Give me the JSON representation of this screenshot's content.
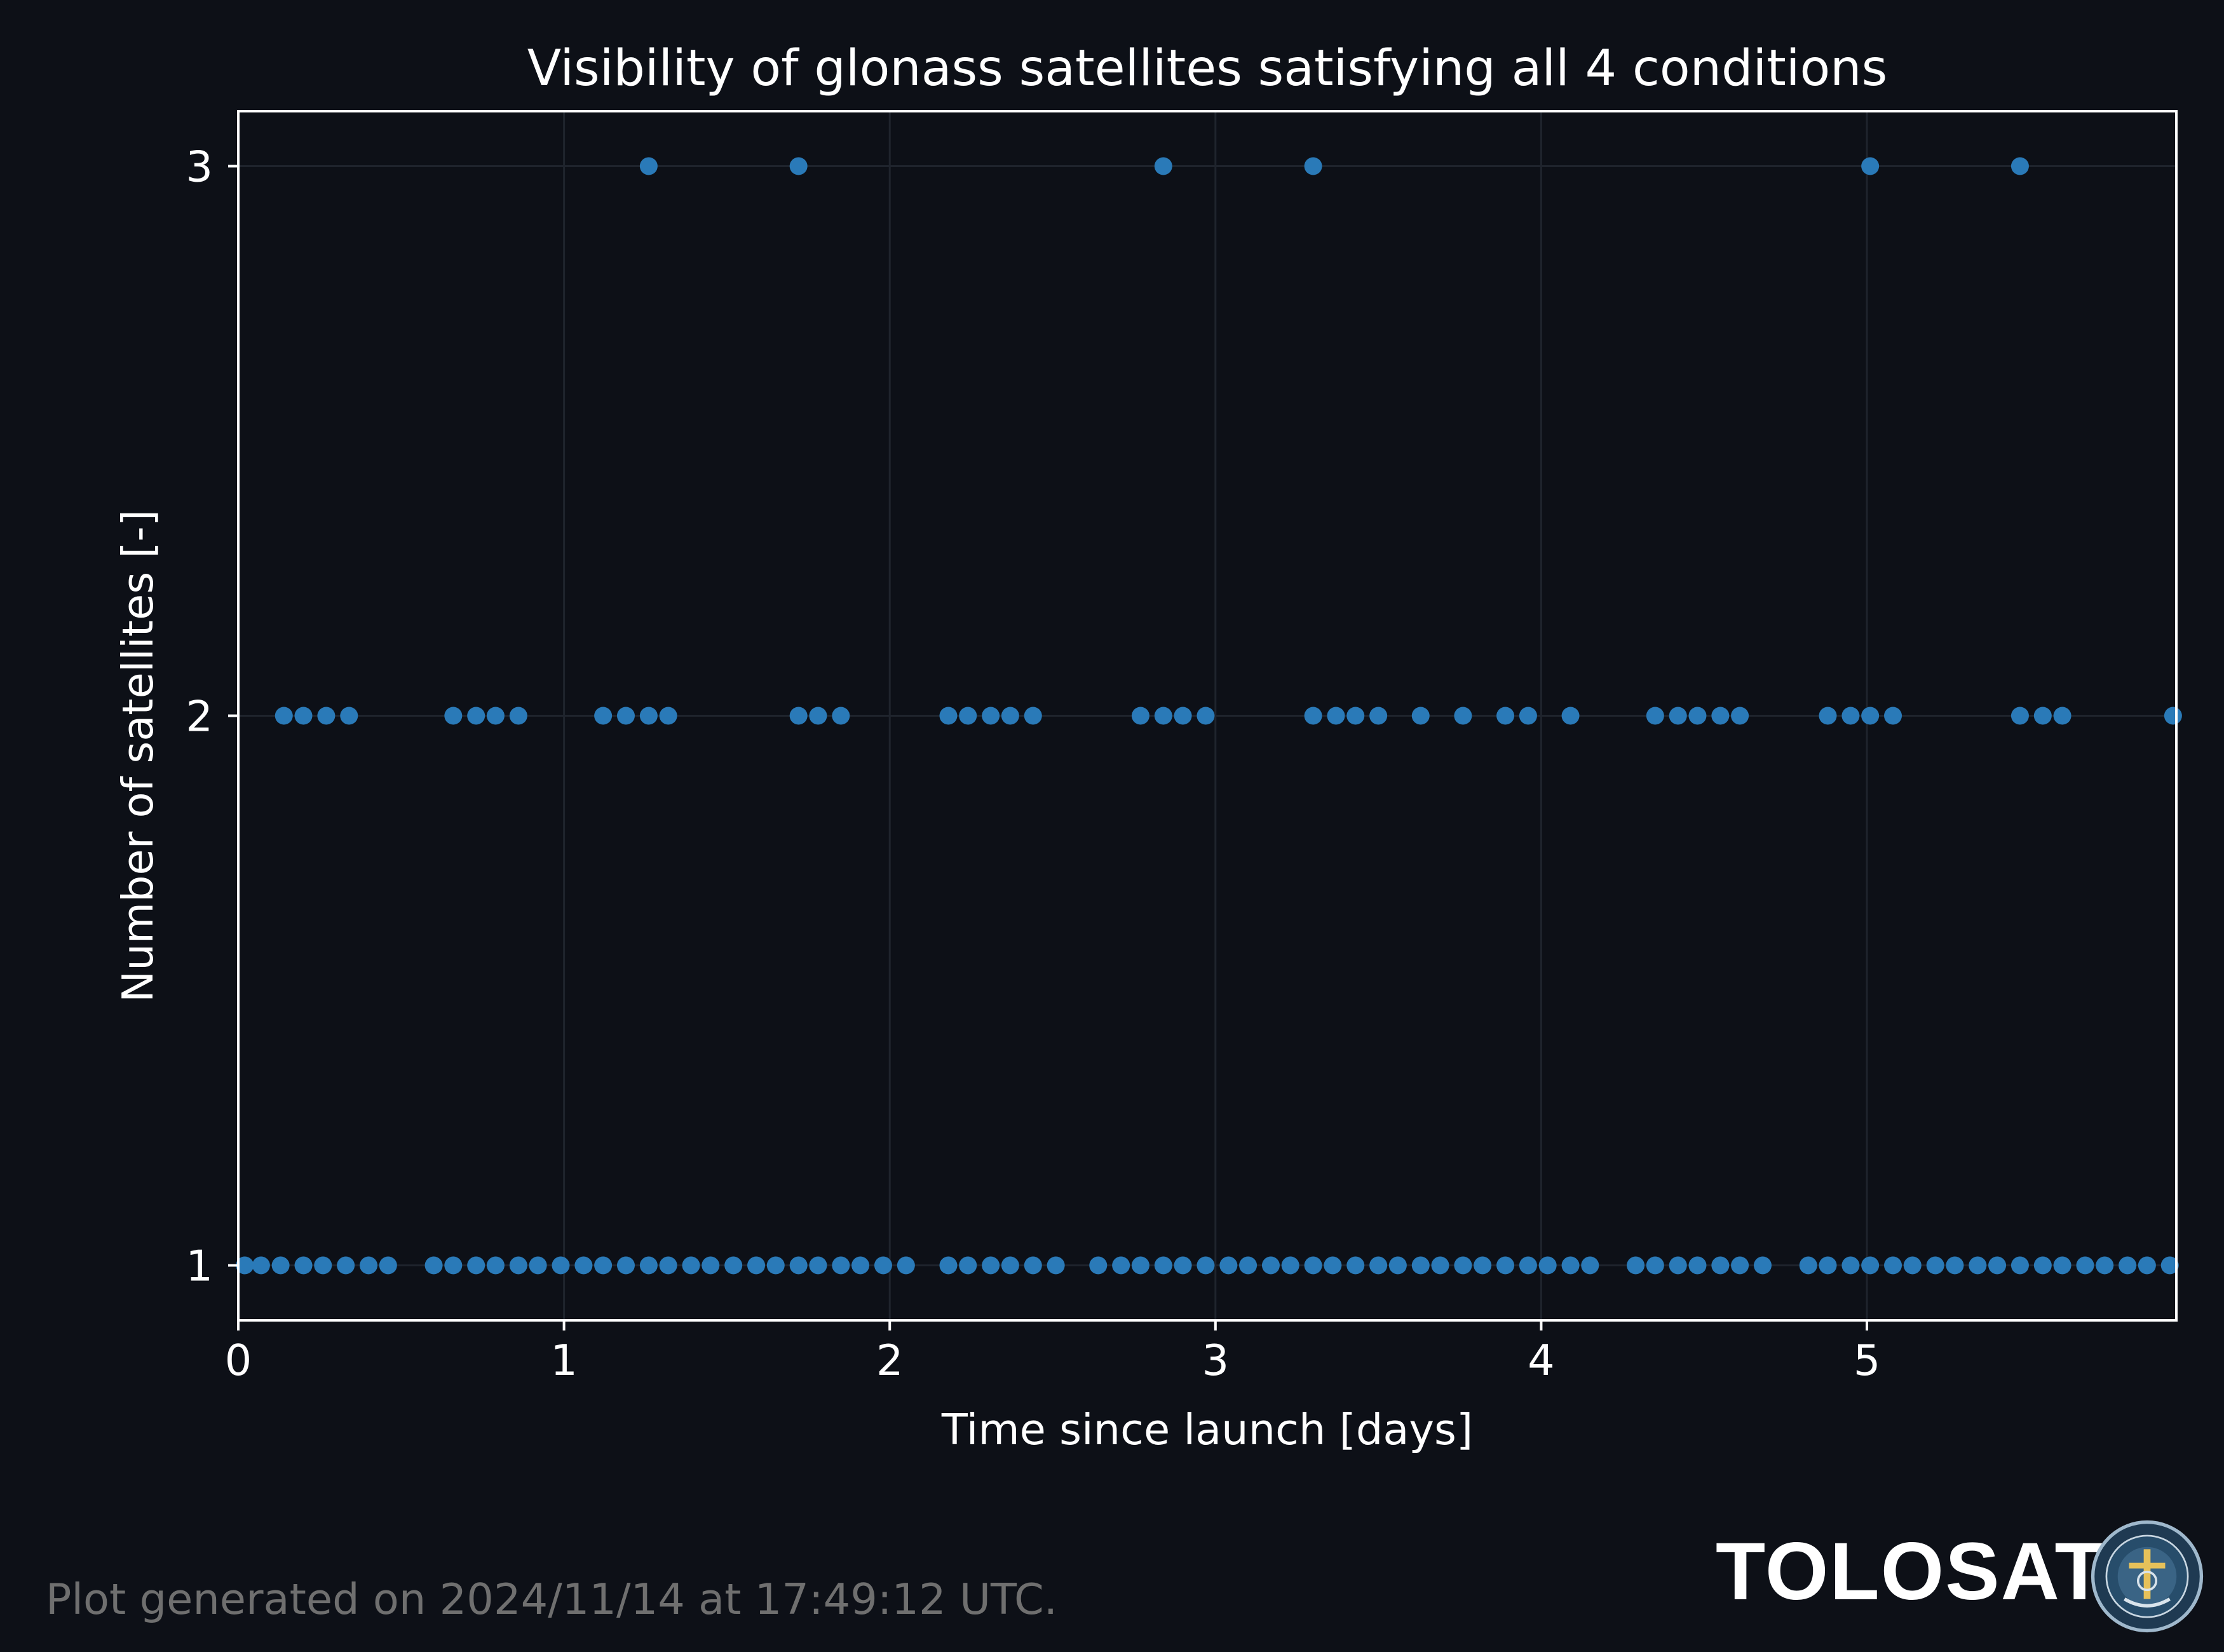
{
  "chart_data": {
    "type": "scatter",
    "title": "Visibility of glonass satellites satisfying all 4 conditions",
    "xlabel": "Time since launch [days]",
    "ylabel": "Number of satellites [-]",
    "xlim": [
      0,
      5.95
    ],
    "ylim": [
      0.9,
      3.1
    ],
    "xticks": [
      0,
      1,
      2,
      3,
      4,
      5
    ],
    "yticks": [
      1,
      2,
      3
    ],
    "grid": true,
    "marker_color": "#2a7ab8",
    "series": [
      {
        "values": [
          [
            0.02,
            1
          ],
          [
            0.07,
            1
          ],
          [
            0.13,
            1
          ],
          [
            0.2,
            1
          ],
          [
            0.26,
            1
          ],
          [
            0.33,
            1
          ],
          [
            0.4,
            1
          ],
          [
            0.46,
            1
          ],
          [
            0.6,
            1
          ],
          [
            0.66,
            1
          ],
          [
            0.73,
            1
          ],
          [
            0.79,
            1
          ],
          [
            0.86,
            1
          ],
          [
            0.92,
            1
          ],
          [
            0.99,
            1
          ],
          [
            1.06,
            1
          ],
          [
            1.12,
            1
          ],
          [
            1.19,
            1
          ],
          [
            1.26,
            1
          ],
          [
            1.32,
            1
          ],
          [
            1.39,
            1
          ],
          [
            1.45,
            1
          ],
          [
            1.52,
            1
          ],
          [
            1.59,
            1
          ],
          [
            1.65,
            1
          ],
          [
            1.72,
            1
          ],
          [
            1.78,
            1
          ],
          [
            1.85,
            1
          ],
          [
            1.91,
            1
          ],
          [
            1.98,
            1
          ],
          [
            2.05,
            1
          ],
          [
            2.18,
            1
          ],
          [
            2.24,
            1
          ],
          [
            2.31,
            1
          ],
          [
            2.37,
            1
          ],
          [
            2.44,
            1
          ],
          [
            2.51,
            1
          ],
          [
            2.64,
            1
          ],
          [
            2.71,
            1
          ],
          [
            2.77,
            1
          ],
          [
            2.84,
            1
          ],
          [
            2.9,
            1
          ],
          [
            2.97,
            1
          ],
          [
            3.04,
            1
          ],
          [
            3.1,
            1
          ],
          [
            3.17,
            1
          ],
          [
            3.23,
            1
          ],
          [
            3.3,
            1
          ],
          [
            3.36,
            1
          ],
          [
            3.43,
            1
          ],
          [
            3.5,
            1
          ],
          [
            3.56,
            1
          ],
          [
            3.63,
            1
          ],
          [
            3.69,
            1
          ],
          [
            3.76,
            1
          ],
          [
            3.82,
            1
          ],
          [
            3.89,
            1
          ],
          [
            3.96,
            1
          ],
          [
            4.02,
            1
          ],
          [
            4.09,
            1
          ],
          [
            4.15,
            1
          ],
          [
            4.29,
            1
          ],
          [
            4.35,
            1
          ],
          [
            4.42,
            1
          ],
          [
            4.48,
            1
          ],
          [
            4.55,
            1
          ],
          [
            4.61,
            1
          ],
          [
            4.68,
            1
          ],
          [
            4.82,
            1
          ],
          [
            4.88,
            1
          ],
          [
            4.95,
            1
          ],
          [
            5.01,
            1
          ],
          [
            5.08,
            1
          ],
          [
            5.14,
            1
          ],
          [
            5.21,
            1
          ],
          [
            5.27,
            1
          ],
          [
            5.34,
            1
          ],
          [
            5.4,
            1
          ],
          [
            5.47,
            1
          ],
          [
            5.54,
            1
          ],
          [
            5.6,
            1
          ],
          [
            5.67,
            1
          ],
          [
            5.73,
            1
          ],
          [
            5.8,
            1
          ],
          [
            5.86,
            1
          ],
          [
            5.93,
            1
          ],
          [
            0.14,
            2
          ],
          [
            0.2,
            2
          ],
          [
            0.27,
            2
          ],
          [
            0.34,
            2
          ],
          [
            0.66,
            2
          ],
          [
            0.73,
            2
          ],
          [
            0.79,
            2
          ],
          [
            0.86,
            2
          ],
          [
            1.12,
            2
          ],
          [
            1.19,
            2
          ],
          [
            1.26,
            2
          ],
          [
            1.32,
            2
          ],
          [
            1.72,
            2
          ],
          [
            1.78,
            2
          ],
          [
            1.85,
            2
          ],
          [
            2.18,
            2
          ],
          [
            2.24,
            2
          ],
          [
            2.31,
            2
          ],
          [
            2.37,
            2
          ],
          [
            2.44,
            2
          ],
          [
            2.77,
            2
          ],
          [
            2.84,
            2
          ],
          [
            2.9,
            2
          ],
          [
            2.97,
            2
          ],
          [
            3.3,
            2
          ],
          [
            3.37,
            2
          ],
          [
            3.43,
            2
          ],
          [
            3.5,
            2
          ],
          [
            3.63,
            2
          ],
          [
            3.76,
            2
          ],
          [
            3.89,
            2
          ],
          [
            3.96,
            2
          ],
          [
            4.09,
            2
          ],
          [
            4.35,
            2
          ],
          [
            4.42,
            2
          ],
          [
            4.48,
            2
          ],
          [
            4.55,
            2
          ],
          [
            4.61,
            2
          ],
          [
            4.88,
            2
          ],
          [
            4.95,
            2
          ],
          [
            5.01,
            2
          ],
          [
            5.08,
            2
          ],
          [
            5.47,
            2
          ],
          [
            5.54,
            2
          ],
          [
            5.6,
            2
          ],
          [
            5.94,
            2
          ],
          [
            1.26,
            3
          ],
          [
            1.72,
            3
          ],
          [
            2.84,
            3
          ],
          [
            3.3,
            3
          ],
          [
            5.01,
            3
          ],
          [
            5.47,
            3
          ]
        ]
      }
    ]
  },
  "footer": {
    "generated": "Plot generated on 2024/11/14 at 17:49:12 UTC."
  },
  "logo": {
    "text": "TOLOSAT"
  }
}
